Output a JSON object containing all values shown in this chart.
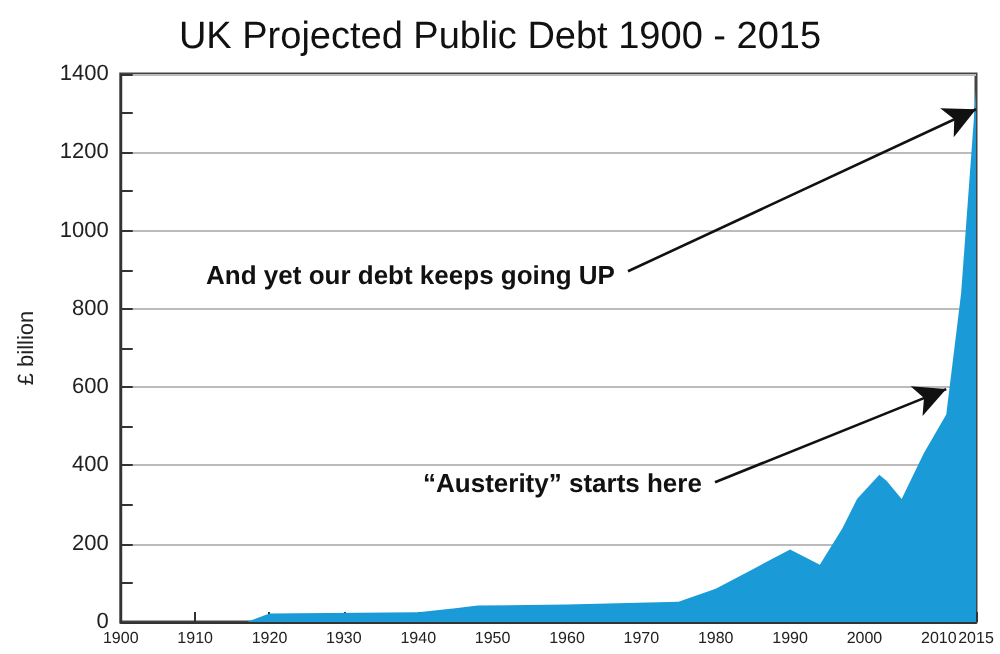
{
  "chart_data": {
    "type": "area",
    "title": "UK Projected Public Debt 1900 - 2015",
    "ylabel": "£ billion",
    "x": [
      1900,
      1917,
      1920,
      1940,
      1945,
      1948,
      1960,
      1975,
      1980,
      1985,
      1990,
      1994,
      1997,
      1999,
      2002,
      2003,
      2005,
      2008,
      2011,
      2013,
      2015
    ],
    "series": [
      {
        "color": "#1a9ad6",
        "values": [
          0,
          0,
          22,
          25,
          35,
          42,
          45,
          52,
          85,
          135,
          185,
          146,
          238,
          314,
          376,
          360,
          314,
          432,
          530,
          840,
          1360
        ]
      }
    ],
    "xlim": [
      1900,
      2015
    ],
    "xticks": [
      1900,
      1910,
      1920,
      1930,
      1940,
      1950,
      1960,
      1970,
      1980,
      1990,
      2000,
      2010,
      2015
    ],
    "ylim": [
      0,
      1400
    ],
    "yticks": [
      0,
      {
        "value": 100,
        "label": null
      },
      200,
      {
        "value": 300,
        "label": null
      },
      400,
      {
        "value": 500,
        "label": null
      },
      600,
      {
        "value": 700,
        "label": null
      },
      800,
      {
        "value": 900,
        "label": null
      },
      1000,
      {
        "value": 1100,
        "label": null
      },
      1200,
      {
        "value": 1300,
        "label": null
      },
      1400
    ],
    "grid": "y",
    "marker": "none",
    "annotations": [
      {
        "text": "And yet our debt keeps going UP",
        "x": 2015,
        "y": 1310
      },
      {
        "text": "“Austerity” starts here",
        "x": 2011,
        "y": 595
      }
    ]
  }
}
